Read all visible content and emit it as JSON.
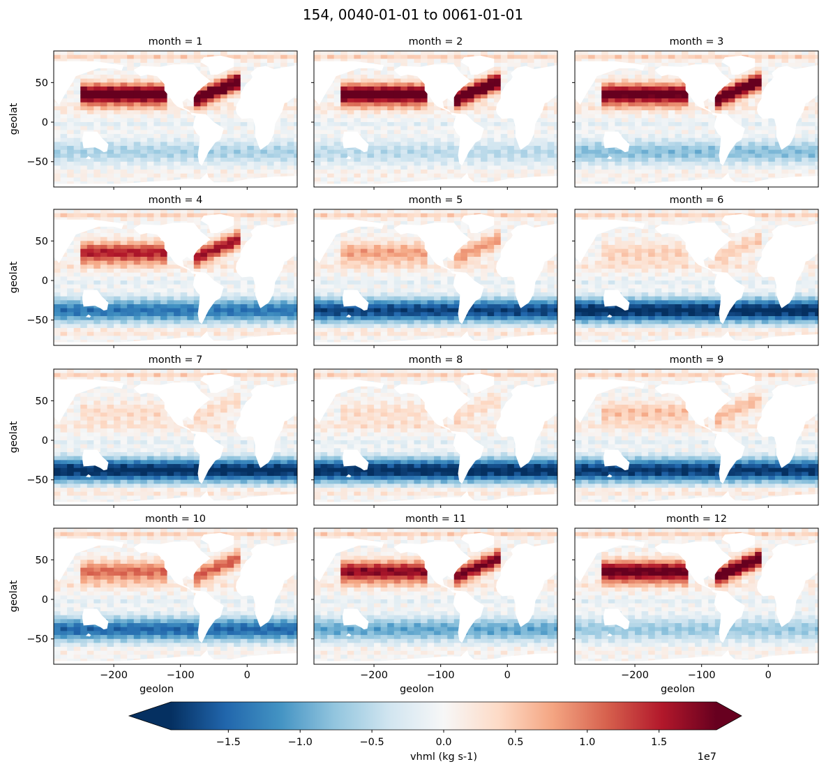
{
  "figure": {
    "title": "154, 0040-01-01 to 0061-01-01",
    "xlabel": "geolon",
    "ylabel": "geolat"
  },
  "chart_data": {
    "type": "heatmap",
    "variable": "vhml",
    "units": "kg s-1",
    "colormap": "RdBu_r",
    "grid": false,
    "shared_axes": true,
    "xlim": [
      -290,
      75
    ],
    "ylim": [
      -82,
      90
    ],
    "x_ticks": [
      -200,
      -100,
      0
    ],
    "x_tick_labels": [
      "−200",
      "−100",
      "0"
    ],
    "y_ticks": [
      50,
      0,
      -50
    ],
    "y_tick_labels": [
      "50",
      "0",
      "−50"
    ],
    "panels": [
      {
        "label": "month = 1",
        "month": 1,
        "nh_extratropical_intensity": 1.0,
        "southern_ocean_intensity": -0.3
      },
      {
        "label": "month = 2",
        "month": 2,
        "nh_extratropical_intensity": 1.0,
        "southern_ocean_intensity": -0.25
      },
      {
        "label": "month = 3",
        "month": 3,
        "nh_extratropical_intensity": 0.95,
        "southern_ocean_intensity": -0.4
      },
      {
        "label": "month = 4",
        "month": 4,
        "nh_extratropical_intensity": 0.7,
        "southern_ocean_intensity": -0.7
      },
      {
        "label": "month = 5",
        "month": 5,
        "nh_extratropical_intensity": 0.35,
        "southern_ocean_intensity": -0.9
      },
      {
        "label": "month = 6",
        "month": 6,
        "nh_extratropical_intensity": 0.2,
        "southern_ocean_intensity": -1.0
      },
      {
        "label": "month = 7",
        "month": 7,
        "nh_extratropical_intensity": 0.15,
        "southern_ocean_intensity": -1.0
      },
      {
        "label": "month = 8",
        "month": 8,
        "nh_extratropical_intensity": 0.15,
        "southern_ocean_intensity": -1.0
      },
      {
        "label": "month = 9",
        "month": 9,
        "nh_extratropical_intensity": 0.25,
        "southern_ocean_intensity": -0.95
      },
      {
        "label": "month = 10",
        "month": 10,
        "nh_extratropical_intensity": 0.5,
        "southern_ocean_intensity": -0.75
      },
      {
        "label": "month = 11",
        "month": 11,
        "nh_extratropical_intensity": 0.8,
        "southern_ocean_intensity": -0.5
      },
      {
        "label": "month = 12",
        "month": 12,
        "nh_extratropical_intensity": 0.95,
        "southern_ocean_intensity": -0.35
      }
    ],
    "colorbar": {
      "label": "vhml (kg s-1)",
      "range": [
        -1.9,
        1.9
      ],
      "ticks": [
        -1.5,
        -1.0,
        -0.5,
        0.0,
        0.5,
        1.0,
        1.5
      ],
      "tick_labels": [
        "−1.5",
        "−1.0",
        "−0.5",
        "0.0",
        "0.5",
        "1.0",
        "1.5"
      ],
      "offset_text": "1e7",
      "extend": "both"
    }
  }
}
